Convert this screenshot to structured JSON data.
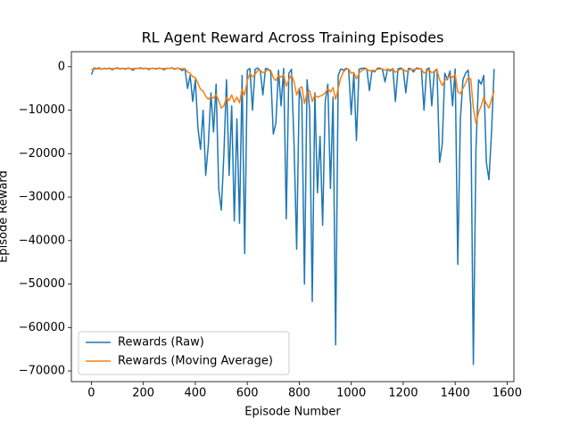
{
  "chart_data": {
    "type": "line",
    "title": "RL Agent Reward Across Training Episodes",
    "xlabel": "Episode Number",
    "ylabel": "Episode Reward",
    "x": [
      0,
      10,
      20,
      30,
      40,
      50,
      60,
      70,
      80,
      90,
      100,
      110,
      120,
      130,
      140,
      150,
      160,
      170,
      180,
      190,
      200,
      210,
      220,
      230,
      240,
      250,
      260,
      270,
      280,
      290,
      300,
      310,
      320,
      330,
      340,
      350,
      360,
      370,
      380,
      390,
      400,
      410,
      420,
      430,
      440,
      450,
      460,
      470,
      480,
      490,
      500,
      510,
      520,
      530,
      540,
      550,
      560,
      570,
      580,
      590,
      600,
      610,
      620,
      630,
      640,
      650,
      660,
      670,
      680,
      690,
      700,
      710,
      720,
      730,
      740,
      750,
      760,
      770,
      780,
      790,
      800,
      810,
      820,
      830,
      840,
      850,
      860,
      870,
      880,
      890,
      900,
      910,
      920,
      930,
      940,
      950,
      960,
      970,
      980,
      990,
      1000,
      1010,
      1020,
      1030,
      1040,
      1050,
      1060,
      1070,
      1080,
      1090,
      1100,
      1110,
      1120,
      1130,
      1140,
      1150,
      1160,
      1170,
      1180,
      1190,
      1200,
      1210,
      1220,
      1230,
      1240,
      1250,
      1260,
      1270,
      1280,
      1290,
      1300,
      1310,
      1320,
      1330,
      1340,
      1350,
      1360,
      1370,
      1380,
      1390,
      1400,
      1410,
      1420,
      1430,
      1440,
      1450,
      1460,
      1470,
      1480,
      1490,
      1500,
      1510,
      1520,
      1530,
      1540,
      1550
    ],
    "series": [
      {
        "name": "Rewards (Raw)",
        "color": "#1f77b4",
        "values": [
          -1800,
          -300,
          -450,
          -250,
          -600,
          -350,
          -500,
          -300,
          -700,
          -400,
          -250,
          -550,
          -350,
          -600,
          -300,
          -450,
          -800,
          -350,
          -400,
          -250,
          -500,
          -300,
          -650,
          -400,
          -350,
          -550,
          -300,
          -450,
          -700,
          -350,
          -400,
          -250,
          -600,
          -300,
          -500,
          -900,
          -400,
          -5000,
          -2000,
          -8000,
          -3000,
          -14000,
          -19000,
          -10000,
          -25000,
          -18000,
          -6000,
          -15000,
          -4000,
          -28000,
          -33000,
          -20000,
          -3000,
          -25000,
          -9000,
          -35500,
          -12000,
          -36000,
          -2000,
          -43000,
          -800,
          -400,
          -10000,
          -600,
          -300,
          -900,
          -6500,
          -400,
          -500,
          -1200,
          -15500,
          -13000,
          -800,
          -9000,
          -400,
          -35000,
          -1500,
          -600,
          -18000,
          -42000,
          -5000,
          -8000,
          -50000,
          -3000,
          -10000,
          -54000,
          -6000,
          -29000,
          -16000,
          -36500,
          -8000,
          -4000,
          -28000,
          -7000,
          -64000,
          -2000,
          -500,
          -800,
          -400,
          -600,
          -11000,
          -1500,
          -17000,
          -600,
          -400,
          -300,
          -500,
          -5500,
          -800,
          -1200,
          -400,
          -300,
          -600,
          -3500,
          -500,
          -1000,
          -400,
          -8000,
          -500,
          -300,
          -600,
          -6000,
          -400,
          -500,
          -1200,
          -300,
          -400,
          -500,
          -10000,
          -600,
          -300,
          -9000,
          -1000,
          -600,
          -22000,
          -18000,
          -1500,
          -3000,
          -1000,
          -9000,
          -500,
          -45500,
          -12000,
          -3000,
          -1500,
          -800,
          -9000,
          -68500,
          -19000,
          -3000,
          -4000,
          -2000,
          -22000,
          -26000,
          -15000,
          -500
        ]
      },
      {
        "name": "Rewards (Moving Average)",
        "color": "#ff7f0e",
        "values": [
          -600,
          -550,
          -500,
          -480,
          -470,
          -460,
          -450,
          -440,
          -450,
          -430,
          -420,
          -430,
          -420,
          -430,
          -410,
          -420,
          -440,
          -420,
          -410,
          -400,
          -410,
          -400,
          -420,
          -410,
          -400,
          -420,
          -400,
          -410,
          -430,
          -410,
          -400,
          -390,
          -410,
          -400,
          -410,
          -440,
          -430,
          -1200,
          -1500,
          -2300,
          -2500,
          -3800,
          -5200,
          -5600,
          -6800,
          -7500,
          -6900,
          -7200,
          -6400,
          -7800,
          -9500,
          -9000,
          -7000,
          -7800,
          -6500,
          -8200,
          -7000,
          -8300,
          -5200,
          -6500,
          -3200,
          -1500,
          -2300,
          -1800,
          -900,
          -800,
          -1400,
          -1100,
          -700,
          -800,
          -2500,
          -3200,
          -2000,
          -2400,
          -1800,
          -4500,
          -3000,
          -1800,
          -3500,
          -6500,
          -5000,
          -4600,
          -8500,
          -6000,
          -5500,
          -8000,
          -6500,
          -7000,
          -6800,
          -6500,
          -6000,
          -5000,
          -5800,
          -4800,
          -7500,
          -5000,
          -2500,
          -1200,
          -600,
          -500,
          -1500,
          -1300,
          -2800,
          -1500,
          -900,
          -600,
          -500,
          -1000,
          -800,
          -900,
          -600,
          -500,
          -500,
          -800,
          -600,
          -700,
          -500,
          -1300,
          -900,
          -600,
          -600,
          -1100,
          -800,
          -600,
          -700,
          -500,
          -500,
          -500,
          -1500,
          -1100,
          -700,
          -1400,
          -1100,
          -800,
          -3000,
          -4300,
          -3200,
          -2800,
          -2000,
          -2500,
          -1700,
          -5800,
          -6200,
          -5000,
          -3800,
          -2500,
          -2800,
          -9500,
          -13000,
          -10500,
          -9000,
          -7000,
          -8500,
          -9500,
          -7500,
          -5500
        ]
      }
    ],
    "xlim": [
      -77,
      1626
    ],
    "ylim": [
      -72450,
      3450
    ],
    "xticks": [
      0,
      200,
      400,
      600,
      800,
      1000,
      1200,
      1400,
      1600
    ],
    "yticks": [
      {
        "value": -70000,
        "label": "−70000"
      },
      {
        "value": -60000,
        "label": "−60000"
      },
      {
        "value": -50000,
        "label": "−50000"
      },
      {
        "value": -40000,
        "label": "−40000"
      },
      {
        "value": -30000,
        "label": "−30000"
      },
      {
        "value": -20000,
        "label": "−20000"
      },
      {
        "value": -10000,
        "label": "−10000"
      },
      0
    ],
    "legend": "lower left",
    "grid": false
  }
}
